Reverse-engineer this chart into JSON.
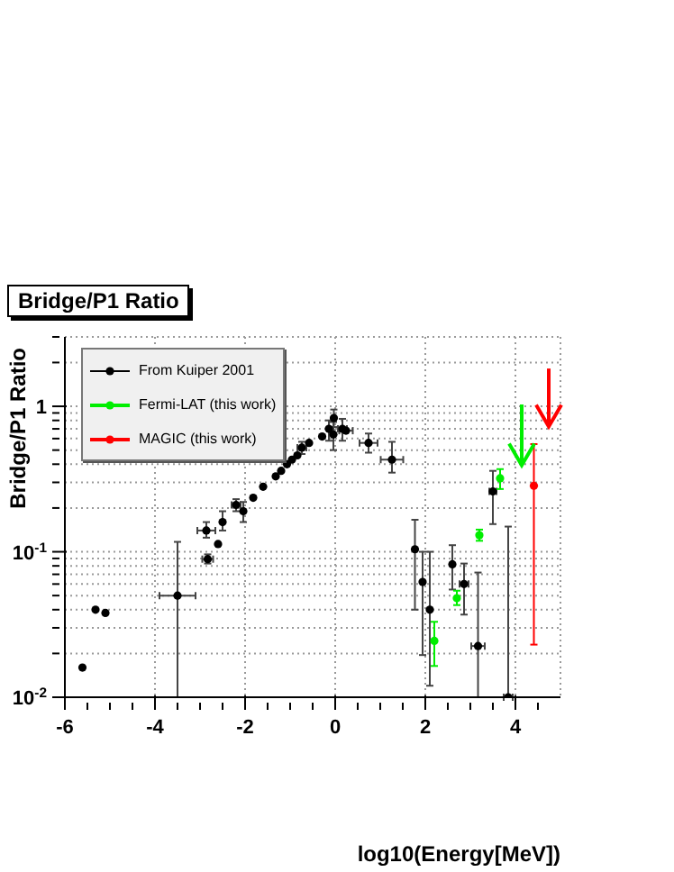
{
  "chart_data": {
    "type": "scatter",
    "title": "Bridge/P1 Ratio",
    "xlabel": "log10(Energy[MeV])",
    "ylabel": "Bridge/P1 Ratio",
    "log": "y",
    "grid": true,
    "legend": "top left",
    "marker": "circle",
    "xlim": [
      -6,
      5
    ],
    "xticks": [
      -6,
      {
        "value": -5.5,
        "label": null
      },
      {
        "value": -5,
        "label": null
      },
      {
        "value": -4.5,
        "label": null
      },
      -4,
      {
        "value": -3.5,
        "label": null
      },
      {
        "value": -3,
        "label": null
      },
      {
        "value": -2.5,
        "label": null
      },
      -2,
      {
        "value": -1.5,
        "label": null
      },
      {
        "value": -1,
        "label": null
      },
      {
        "value": -0.5,
        "label": null
      },
      0,
      {
        "value": 0.5,
        "label": null
      },
      {
        "value": 1,
        "label": null
      },
      {
        "value": 1.5,
        "label": null
      },
      2,
      {
        "value": 2.5,
        "label": null
      },
      {
        "value": 3,
        "label": null
      },
      {
        "value": 3.5,
        "label": null
      },
      4,
      {
        "value": 4.5,
        "label": null
      }
    ],
    "ylim": [
      0.01,
      3
    ],
    "yticks": [
      {
        "value": 0.01,
        "label": "10$^{-2}$"
      },
      {
        "value": 0.02,
        "label": null
      },
      {
        "value": 0.03,
        "label": null
      },
      {
        "value": 0.04,
        "label": null
      },
      {
        "value": 0.05,
        "label": null
      },
      {
        "value": 0.06,
        "label": null
      },
      {
        "value": 0.07,
        "label": null
      },
      {
        "value": 0.08,
        "label": null
      },
      {
        "value": 0.09,
        "label": null
      },
      {
        "value": 0.1,
        "label": "10$^{-1}$"
      },
      {
        "value": 0.2,
        "label": null
      },
      {
        "value": 0.3,
        "label": null
      },
      {
        "value": 0.4,
        "label": null
      },
      {
        "value": 0.5,
        "label": null
      },
      {
        "value": 0.6,
        "label": null
      },
      {
        "value": 0.7,
        "label": null
      },
      {
        "value": 0.8,
        "label": null
      },
      {
        "value": 0.9,
        "label": null
      },
      {
        "value": 1,
        "label": "1"
      },
      {
        "value": 2,
        "label": null
      },
      {
        "value": 3,
        "label": null
      }
    ],
    "series": [
      {
        "name": "From Kuiper 2001",
        "color": "#000000",
        "x": [
          -5.61,
          -5.32,
          -5.1,
          -3.5,
          -2.86,
          -2.83,
          -2.6,
          -2.5,
          -2.2,
          -2.04,
          -1.82,
          -1.6,
          -1.32,
          -1.2,
          -1.07,
          -0.96,
          -0.84,
          -0.74,
          -0.58,
          -0.29,
          -0.14,
          -0.03,
          -0.04,
          0.16,
          0.24,
          0.74,
          1.26,
          1.77,
          1.94,
          2.1,
          2.6,
          2.86,
          3.17,
          3.5,
          3.84
        ],
        "values": [
          0.016,
          0.04,
          0.038,
          0.05,
          0.14,
          0.089,
          0.113,
          0.16,
          0.21,
          0.19,
          0.235,
          0.28,
          0.33,
          0.36,
          0.4,
          0.43,
          0.46,
          0.52,
          0.56,
          0.62,
          0.7,
          0.83,
          0.64,
          0.7,
          0.68,
          0.56,
          0.43,
          0.104,
          0.062,
          0.04,
          0.082,
          0.06,
          0.0225,
          0.26,
          0.01
        ],
        "errors": [
          null,
          null,
          null,
          [
            0.01,
            0.117
          ],
          [
            0.125,
            0.16
          ],
          [
            0.083,
            0.096
          ],
          null,
          [
            0.14,
            0.19
          ],
          [
            0.19,
            0.23
          ],
          [
            0.16,
            0.22
          ],
          null,
          null,
          null,
          null,
          null,
          null,
          null,
          [
            0.47,
            0.57
          ],
          null,
          null,
          [
            0.58,
            0.8
          ],
          [
            0.72,
            0.95
          ],
          [
            0.5,
            0.78
          ],
          [
            0.58,
            0.82
          ],
          null,
          [
            0.48,
            0.65
          ],
          [
            0.35,
            0.57
          ],
          [
            0.04,
            0.166
          ],
          [
            0.0195,
            0.1
          ],
          [
            0.012,
            0.1
          ],
          [
            0.055,
            0.111
          ],
          [
            0.037,
            0.083
          ],
          [
            0.01,
            0.072
          ],
          [
            0.155,
            0.36
          ],
          [
            0.01,
            0.149
          ]
        ],
        "xerrors": [
          null,
          null,
          null,
          0.4,
          0.2,
          0.12,
          null,
          null,
          0.1,
          null,
          null,
          null,
          null,
          null,
          null,
          null,
          null,
          0.1,
          null,
          null,
          null,
          null,
          null,
          0.1,
          0.15,
          0.2,
          0.25,
          null,
          null,
          null,
          null,
          0.1,
          0.15,
          0.08,
          0.1
        ]
      },
      {
        "name": "Fermi-LAT (this work)",
        "color": "#00ee00",
        "x": [
          2.2,
          2.7,
          3.2,
          3.66
        ],
        "values": [
          0.0244,
          0.048,
          0.13,
          0.32
        ],
        "errors": [
          [
            0.0164,
            0.033
          ],
          [
            0.043,
            0.054
          ],
          [
            0.119,
            0.142
          ],
          [
            0.27,
            0.37
          ]
        ]
      },
      {
        "name": "MAGIC (this work)",
        "color": "#ff0000",
        "x": [
          4.41
        ],
        "values": [
          0.284
        ],
        "errors": [
          [
            0.023,
            0.55
          ]
        ]
      }
    ]
  }
}
